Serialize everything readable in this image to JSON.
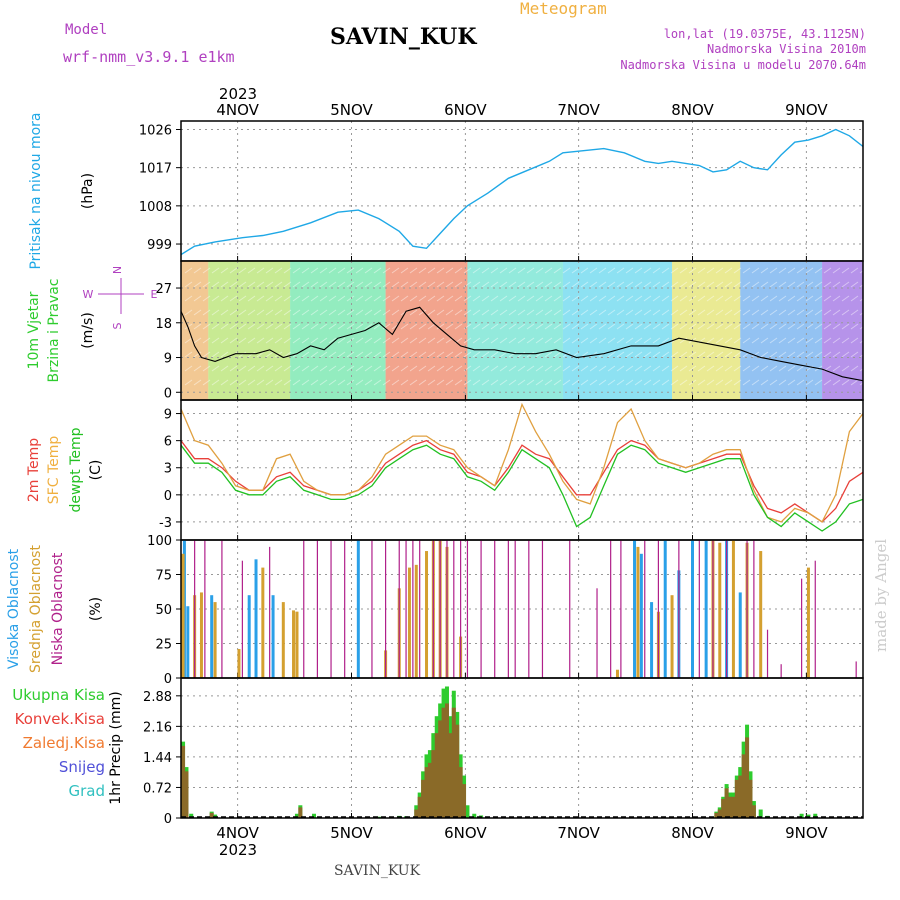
{
  "header": {
    "model_label": "Model",
    "model_name": "wrf-nmm_v3.9.1 e1km",
    "station": "SAVIN_KUK",
    "title": "Meteogram",
    "lonlat": "lon,lat (19.0375E, 43.1125N)",
    "altitude": "Nadmorska Visina 2010m",
    "model_altitude": "Nadmorska Visina u modelu 2070.64m"
  },
  "footer": {
    "station": "SAVIN_KUK",
    "credit": "made by Angel"
  },
  "time_axis": {
    "year": "2023",
    "day_labels": [
      "4NOV",
      "5NOV",
      "6NOV",
      "7NOV",
      "8NOV",
      "9NOV"
    ],
    "day_positions": [
      0.083,
      0.25,
      0.417,
      0.583,
      0.75,
      0.917
    ]
  },
  "colors": {
    "pressure": "#1fa8e6",
    "wind_speed": "#000000",
    "t2m": "#e8403a",
    "tsfc": "#e0a040",
    "dewpt": "#22c022",
    "cloud_high": "#2aa0e8",
    "cloud_mid": "#d4a030",
    "cloud_low": "#b0208a",
    "precip_total": "#2ecc2e",
    "precip_conv": "#8a6a28",
    "title_orange": "#f0b040",
    "info_purple": "#b040c0",
    "credit": "#cccccc"
  },
  "chart_data": [
    {
      "type": "line",
      "name": "pressure",
      "ylabel": "(hPa)",
      "side_labels": [
        "Pritisak na nivou mora"
      ],
      "yticks": [
        999,
        1008,
        1017,
        1026
      ],
      "ylim": [
        995,
        1028
      ],
      "x": [
        0.0,
        0.02,
        0.05,
        0.09,
        0.12,
        0.15,
        0.19,
        0.23,
        0.26,
        0.29,
        0.32,
        0.34,
        0.36,
        0.38,
        0.4,
        0.42,
        0.45,
        0.48,
        0.51,
        0.54,
        0.56,
        0.59,
        0.62,
        0.65,
        0.68,
        0.7,
        0.72,
        0.74,
        0.76,
        0.78,
        0.8,
        0.82,
        0.84,
        0.86,
        0.88,
        0.9,
        0.92,
        0.94,
        0.96,
        0.98,
        1.0
      ],
      "values": [
        996.5,
        998.5,
        999.5,
        1000.5,
        1001.0,
        1002.0,
        1004.0,
        1006.5,
        1007.0,
        1005.0,
        1002.0,
        998.5,
        998.0,
        1001.5,
        1005.0,
        1008.0,
        1011.0,
        1014.5,
        1016.5,
        1018.5,
        1020.5,
        1021.0,
        1021.5,
        1020.5,
        1018.5,
        1018.0,
        1018.5,
        1018.0,
        1017.5,
        1016.0,
        1016.5,
        1018.5,
        1017.0,
        1016.5,
        1020.0,
        1023.0,
        1023.5,
        1024.5,
        1026.0,
        1024.5,
        1022.0
      ]
    },
    {
      "type": "line",
      "name": "wind",
      "ylabel": "(m/s)",
      "side_labels": [
        "10m Vjetar",
        "Brzina i Pravac"
      ],
      "compass": [
        "N",
        "W",
        "E",
        "S"
      ],
      "yticks": [
        0,
        9,
        18,
        27
      ],
      "ylim": [
        -2,
        34
      ],
      "x": [
        0.0,
        0.01,
        0.02,
        0.03,
        0.05,
        0.08,
        0.11,
        0.13,
        0.15,
        0.17,
        0.19,
        0.21,
        0.23,
        0.25,
        0.27,
        0.29,
        0.31,
        0.33,
        0.35,
        0.37,
        0.39,
        0.41,
        0.43,
        0.46,
        0.49,
        0.52,
        0.55,
        0.58,
        0.62,
        0.66,
        0.7,
        0.73,
        0.76,
        0.79,
        0.82,
        0.85,
        0.88,
        0.91,
        0.94,
        0.97,
        1.0
      ],
      "values": [
        21,
        17,
        12,
        9,
        8,
        10,
        10,
        11,
        9,
        10,
        12,
        11,
        14,
        15,
        16,
        18,
        15,
        21,
        22,
        18,
        15,
        12,
        11,
        11,
        10,
        10,
        11,
        9,
        10,
        12,
        12,
        14,
        13,
        12,
        11,
        9,
        8,
        7,
        6,
        4,
        3
      ],
      "barb_bands": [
        {
          "from": 0.0,
          "to": 0.04,
          "color": "#e89a3a"
        },
        {
          "from": 0.04,
          "to": 0.16,
          "color": "#9ad83a"
        },
        {
          "from": 0.16,
          "to": 0.3,
          "color": "#3adc8a"
        },
        {
          "from": 0.3,
          "to": 0.42,
          "color": "#e85a30"
        },
        {
          "from": 0.42,
          "to": 0.56,
          "color": "#3ad8c0"
        },
        {
          "from": 0.56,
          "to": 0.72,
          "color": "#30c8e8"
        },
        {
          "from": 0.72,
          "to": 0.82,
          "color": "#d8d83a"
        },
        {
          "from": 0.82,
          "to": 0.94,
          "color": "#3a90e8"
        },
        {
          "from": 0.94,
          "to": 1.0,
          "color": "#7a3ad8"
        }
      ]
    },
    {
      "type": "line",
      "name": "temperature",
      "ylabel": "(C)",
      "side_labels": [
        "2m Temp",
        "SFC Temp",
        "dewpt Temp"
      ],
      "yticks": [
        -3,
        0,
        3,
        6,
        9
      ],
      "ylim": [
        -5,
        10.5
      ],
      "x": [
        0.0,
        0.02,
        0.04,
        0.06,
        0.08,
        0.1,
        0.12,
        0.14,
        0.16,
        0.18,
        0.2,
        0.22,
        0.24,
        0.26,
        0.28,
        0.3,
        0.32,
        0.34,
        0.36,
        0.38,
        0.4,
        0.42,
        0.44,
        0.46,
        0.48,
        0.5,
        0.52,
        0.54,
        0.56,
        0.58,
        0.6,
        0.62,
        0.64,
        0.66,
        0.68,
        0.7,
        0.72,
        0.74,
        0.76,
        0.78,
        0.8,
        0.82,
        0.84,
        0.86,
        0.88,
        0.9,
        0.92,
        0.94,
        0.96,
        0.98,
        1.0
      ],
      "series": [
        {
          "name": "2m",
          "color": "#e8403a",
          "values": [
            6.0,
            4.0,
            4.0,
            3.0,
            1.5,
            0.5,
            0.5,
            2.0,
            2.5,
            1.0,
            0.5,
            0.0,
            0.0,
            0.5,
            1.5,
            3.5,
            4.5,
            5.5,
            6.0,
            5.0,
            4.5,
            2.5,
            2.0,
            1.0,
            3.0,
            5.5,
            4.5,
            4.0,
            2.0,
            0.0,
            0.0,
            2.5,
            5.0,
            6.0,
            5.5,
            4.0,
            3.5,
            3.0,
            3.5,
            4.0,
            4.5,
            4.5,
            1.0,
            -1.5,
            -2.0,
            -1.0,
            -2.0,
            -3.0,
            -1.5,
            1.5,
            2.5
          ]
        },
        {
          "name": "SFC",
          "color": "#e0a040",
          "values": [
            9.5,
            6.0,
            5.5,
            3.5,
            1.0,
            0.5,
            0.5,
            4.0,
            4.5,
            1.5,
            0.5,
            0.0,
            0.0,
            0.5,
            2.0,
            4.5,
            5.5,
            6.5,
            6.5,
            5.5,
            5.0,
            3.0,
            2.0,
            1.0,
            5.0,
            10.0,
            7.0,
            4.5,
            1.5,
            -0.5,
            -1.0,
            3.0,
            8.0,
            9.5,
            6.0,
            4.0,
            3.5,
            3.0,
            3.5,
            4.5,
            5.0,
            5.0,
            0.5,
            -2.5,
            -3.0,
            -1.5,
            -2.0,
            -3.0,
            0.0,
            7.0,
            9.0
          ]
        },
        {
          "name": "dewpt",
          "color": "#22c022",
          "values": [
            5.5,
            3.5,
            3.5,
            2.5,
            0.5,
            0.0,
            0.0,
            1.5,
            2.0,
            0.5,
            0.0,
            -0.5,
            -0.5,
            0.0,
            1.0,
            3.0,
            4.0,
            5.0,
            5.5,
            4.5,
            4.0,
            2.0,
            1.5,
            0.5,
            2.5,
            5.0,
            4.0,
            3.0,
            0.0,
            -3.5,
            -2.5,
            1.0,
            4.5,
            5.5,
            5.0,
            3.5,
            3.0,
            2.5,
            3.0,
            3.5,
            4.0,
            4.0,
            0.0,
            -2.5,
            -3.5,
            -2.0,
            -3.0,
            -4.0,
            -3.0,
            -1.0,
            -0.5
          ]
        }
      ]
    },
    {
      "type": "bar",
      "name": "clouds",
      "ylabel": "(%)",
      "side_labels": [
        "Visoka Oblacnost",
        "Srednja Oblacnost",
        "Niska Oblacnost"
      ],
      "yticks": [
        0,
        25,
        50,
        75,
        100
      ],
      "ylim": [
        0,
        100
      ],
      "series": [
        {
          "name": "high",
          "color": "#2aa0e8",
          "x": [
            0.005,
            0.01,
            0.045,
            0.1,
            0.11,
            0.135,
            0.26,
            0.665,
            0.675,
            0.69,
            0.71,
            0.73,
            0.75,
            0.77,
            0.8,
            0.82
          ],
          "values": [
            100,
            52,
            60,
            60,
            86,
            60,
            100,
            100,
            90,
            55,
            100,
            78,
            100,
            100,
            100,
            62
          ]
        },
        {
          "name": "mid",
          "color": "#d4a030",
          "x": [
            0.003,
            0.02,
            0.03,
            0.05,
            0.085,
            0.12,
            0.15,
            0.165,
            0.17,
            0.17,
            0.3,
            0.32,
            0.335,
            0.345,
            0.36,
            0.37,
            0.38,
            0.39,
            0.41,
            0.64,
            0.67,
            0.7,
            0.72,
            0.78,
            0.79,
            0.81,
            0.83,
            0.85,
            0.92
          ],
          "values": [
            90,
            60,
            62,
            55,
            21,
            80,
            55,
            49,
            48,
            48,
            20,
            65,
            80,
            82,
            92,
            100,
            100,
            95,
            30,
            6,
            95,
            48,
            60,
            100,
            98,
            100,
            98,
            92,
            80
          ]
        },
        {
          "name": "low",
          "color": "#b0208a",
          "x": [
            0.02,
            0.035,
            0.06,
            0.09,
            0.13,
            0.18,
            0.2,
            0.22,
            0.24,
            0.28,
            0.3,
            0.32,
            0.33,
            0.34,
            0.35,
            0.37,
            0.38,
            0.39,
            0.4,
            0.41,
            0.42,
            0.44,
            0.46,
            0.48,
            0.49,
            0.51,
            0.53,
            0.57,
            0.61,
            0.63,
            0.645,
            0.68,
            0.7,
            0.73,
            0.76,
            0.78,
            0.8,
            0.83,
            0.84,
            0.86,
            0.88,
            0.91,
            0.93,
            0.99
          ],
          "values": [
            100,
            100,
            100,
            85,
            95,
            100,
            100,
            100,
            100,
            100,
            100,
            100,
            100,
            100,
            100,
            100,
            100,
            100,
            100,
            100,
            100,
            100,
            100,
            100,
            100,
            100,
            100,
            100,
            65,
            100,
            100,
            100,
            100,
            100,
            100,
            100,
            100,
            100,
            100,
            35,
            10,
            72,
            85,
            12
          ]
        }
      ]
    },
    {
      "type": "bar",
      "name": "precipitation",
      "ylabel": "1hr Precip (mm)",
      "side_labels": [
        "Ukupna Kisa",
        "Konvek.Kisa",
        "Zaledj.Kisa",
        "Snijeg",
        "Grad"
      ],
      "side_label_colors": [
        "#2ecc2e",
        "#e8403a",
        "#f07a30",
        "#5050d8",
        "#30c0c0"
      ],
      "yticks": [
        0,
        0.72,
        1.44,
        2.16,
        2.88
      ],
      "ylim": [
        0,
        3.3
      ],
      "series": [
        {
          "name": "total",
          "color": "#2ecc2e",
          "x": [
            0.003,
            0.008,
            0.015,
            0.045,
            0.05,
            0.17,
            0.175,
            0.195,
            0.29,
            0.295,
            0.32,
            0.33,
            0.345,
            0.35,
            0.355,
            0.36,
            0.365,
            0.37,
            0.375,
            0.38,
            0.385,
            0.39,
            0.395,
            0.4,
            0.405,
            0.41,
            0.415,
            0.42,
            0.43,
            0.44,
            0.785,
            0.79,
            0.795,
            0.8,
            0.805,
            0.81,
            0.815,
            0.82,
            0.825,
            0.83,
            0.835,
            0.84,
            0.85,
            0.86,
            0.91,
            0.92,
            0.93
          ],
          "values": [
            1.8,
            1.2,
            0.1,
            0.15,
            0.08,
            0.1,
            0.3,
            0.1,
            0.03,
            0.02,
            0.05,
            0.04,
            0.3,
            0.6,
            1.1,
            1.5,
            1.6,
            2.0,
            2.4,
            2.7,
            3.05,
            3.1,
            2.4,
            3.0,
            2.5,
            1.5,
            1.0,
            0.3,
            0.1,
            0.06,
            0.15,
            0.25,
            0.5,
            0.8,
            0.6,
            0.6,
            1.0,
            1.2,
            1.8,
            2.2,
            1.1,
            0.4,
            0.2,
            0.05,
            0.1,
            0.08,
            0.1
          ]
        },
        {
          "name": "convective",
          "color": "#8a6a28",
          "x": [
            0.003,
            0.008,
            0.045,
            0.175,
            0.345,
            0.35,
            0.355,
            0.36,
            0.365,
            0.37,
            0.375,
            0.38,
            0.385,
            0.39,
            0.395,
            0.4,
            0.405,
            0.41,
            0.415,
            0.785,
            0.79,
            0.795,
            0.8,
            0.805,
            0.81,
            0.815,
            0.82,
            0.825,
            0.83,
            0.835,
            0.84
          ],
          "values": [
            1.7,
            1.1,
            0.12,
            0.25,
            0.2,
            0.5,
            0.9,
            1.2,
            1.3,
            1.6,
            2.0,
            2.3,
            2.6,
            2.7,
            2.0,
            2.6,
            2.2,
            1.2,
            0.8,
            0.12,
            0.2,
            0.45,
            0.7,
            0.5,
            0.5,
            0.9,
            1.0,
            1.5,
            1.9,
            0.9,
            0.3
          ]
        }
      ]
    }
  ]
}
